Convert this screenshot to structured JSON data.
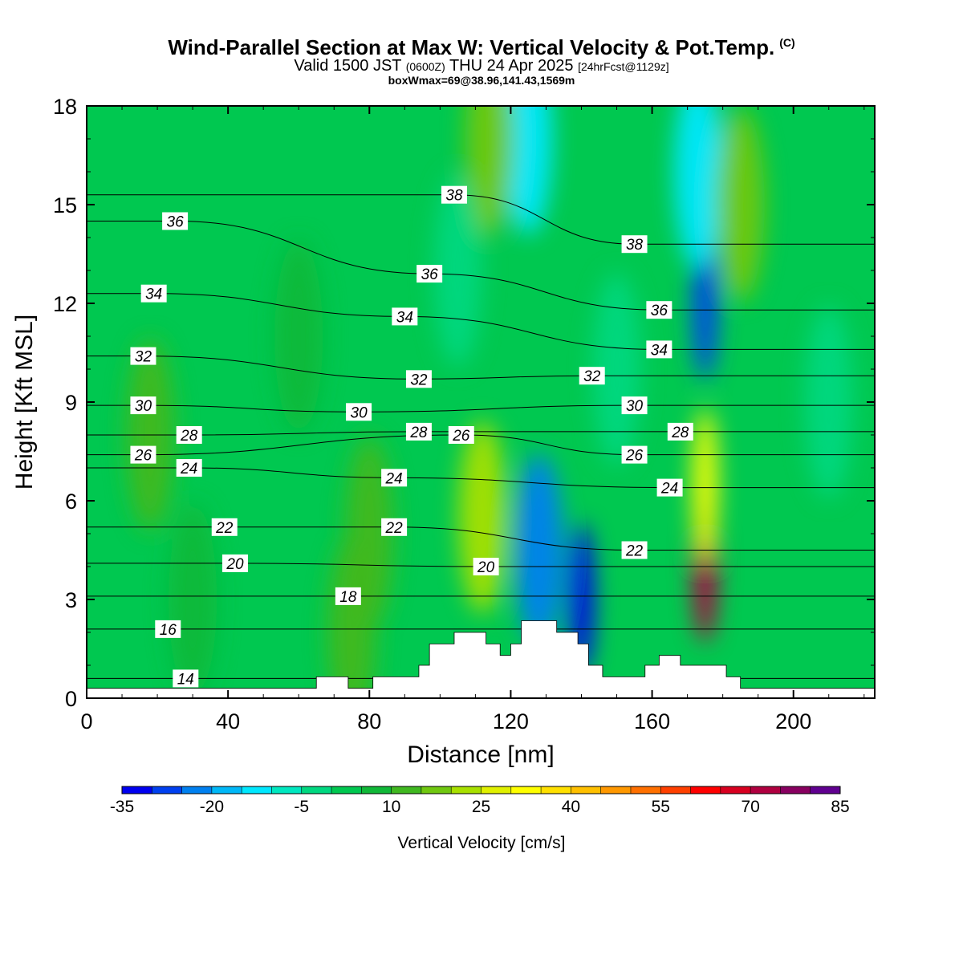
{
  "header": {
    "title": "Wind-Parallel Section at Max W: Vertical Velocity & Pot.Temp.",
    "copyright": "(C)",
    "valid_prefix": "Valid 1500 JST",
    "valid_utc": "(0600Z)",
    "valid_date": "THU 24 Apr 2025",
    "forecast": "[24hrFcst@1129z]",
    "box_info": "boxWmax=69@38.96,141.43,1569m"
  },
  "chart_data": {
    "type": "heatmap",
    "xlabel": "Distance [nm]",
    "ylabel": "Height [Kft MSL]",
    "xlim": [
      0,
      223
    ],
    "ylim": [
      0,
      18
    ],
    "x_ticks": [
      0,
      40,
      80,
      120,
      160,
      200
    ],
    "y_ticks": [
      0,
      3,
      6,
      9,
      12,
      15,
      18
    ],
    "grid": false,
    "colorbar": {
      "label": "Vertical Velocity [cm/s]",
      "position": "bottom",
      "min": -35,
      "max": 85,
      "step": 5,
      "tick_labels": [
        -35,
        -20,
        -5,
        10,
        25,
        40,
        55,
        70,
        85
      ],
      "colors": [
        "#0000f0",
        "#0040f0",
        "#0080f0",
        "#00b8f8",
        "#00e8ff",
        "#00e8c0",
        "#00d880",
        "#00c850",
        "#10b838",
        "#40b820",
        "#70c810",
        "#a8e000",
        "#e0f000",
        "#ffff00",
        "#ffe000",
        "#ffc000",
        "#ff9800",
        "#ff7000",
        "#ff4000",
        "#ff0000",
        "#d80020",
        "#b00040",
        "#880060",
        "#600090"
      ]
    },
    "background_velocity": 0,
    "velocity_features": [
      {
        "x": 175,
        "z": 4,
        "w": 70,
        "note": "max updraft"
      },
      {
        "x": 175,
        "z": 6.5,
        "w": 30
      },
      {
        "x": 112,
        "z": 5.5,
        "w": 22
      },
      {
        "x": 140,
        "z": 3,
        "w": -33
      },
      {
        "x": 128,
        "z": 4.5,
        "w": -22
      },
      {
        "x": 175,
        "z": 12,
        "w": -30
      },
      {
        "x": 173,
        "z": 16,
        "w": -15
      },
      {
        "x": 125,
        "z": 17,
        "w": -12
      },
      {
        "x": 114,
        "z": 17,
        "w": 18
      },
      {
        "x": 185,
        "z": 15,
        "w": 15
      },
      {
        "x": 75,
        "z": 2,
        "w": 12
      },
      {
        "x": 80,
        "z": 5,
        "w": 12
      },
      {
        "x": 60,
        "z": 11,
        "w": 8
      },
      {
        "x": 18,
        "z": 8,
        "w": 10
      },
      {
        "x": 30,
        "z": 3,
        "w": 8
      },
      {
        "x": 105,
        "z": 13,
        "w": -5
      },
      {
        "x": 150,
        "z": 10,
        "w": -5
      },
      {
        "x": 210,
        "z": 9,
        "w": -5
      }
    ],
    "isentropes": {
      "quantity": "Potential Temperature",
      "labels": [
        {
          "value": "14",
          "x": 28,
          "z": 0.6
        },
        {
          "value": "16",
          "x": 23,
          "z": 2.1
        },
        {
          "value": "18",
          "x": 74,
          "z": 3.1
        },
        {
          "value": "20",
          "x": 42,
          "z": 4.1
        },
        {
          "value": "20",
          "x": 113,
          "z": 4.0
        },
        {
          "value": "22",
          "x": 39,
          "z": 5.2
        },
        {
          "value": "22",
          "x": 87,
          "z": 5.2
        },
        {
          "value": "22",
          "x": 155,
          "z": 4.5
        },
        {
          "value": "24",
          "x": 29,
          "z": 7.0
        },
        {
          "value": "24",
          "x": 87,
          "z": 6.7
        },
        {
          "value": "24",
          "x": 165,
          "z": 6.4
        },
        {
          "value": "26",
          "x": 16,
          "z": 7.4
        },
        {
          "value": "26",
          "x": 106,
          "z": 8.0
        },
        {
          "value": "26",
          "x": 155,
          "z": 7.4
        },
        {
          "value": "28",
          "x": 29,
          "z": 8.0
        },
        {
          "value": "28",
          "x": 94,
          "z": 8.1
        },
        {
          "value": "28",
          "x": 168,
          "z": 8.1
        },
        {
          "value": "30",
          "x": 16,
          "z": 8.9
        },
        {
          "value": "30",
          "x": 77,
          "z": 8.7
        },
        {
          "value": "30",
          "x": 155,
          "z": 8.9
        },
        {
          "value": "32",
          "x": 16,
          "z": 10.4
        },
        {
          "value": "32",
          "x": 94,
          "z": 9.7
        },
        {
          "value": "32",
          "x": 143,
          "z": 9.8
        },
        {
          "value": "34",
          "x": 19,
          "z": 12.3
        },
        {
          "value": "34",
          "x": 90,
          "z": 11.6
        },
        {
          "value": "34",
          "x": 162,
          "z": 10.6
        },
        {
          "value": "36",
          "x": 25,
          "z": 14.5
        },
        {
          "value": "36",
          "x": 97,
          "z": 12.9
        },
        {
          "value": "36",
          "x": 162,
          "z": 11.8
        },
        {
          "value": "38",
          "x": 104,
          "z": 15.3
        },
        {
          "value": "38",
          "x": 155,
          "z": 13.8
        }
      ]
    },
    "terrain": [
      [
        0,
        0.3
      ],
      [
        65,
        0.3
      ],
      [
        65,
        0.65
      ],
      [
        74,
        0.65
      ],
      [
        74,
        0.3
      ],
      [
        81,
        0.3
      ],
      [
        81,
        0.65
      ],
      [
        94,
        0.65
      ],
      [
        94,
        1.0
      ],
      [
        97,
        1.0
      ],
      [
        97,
        1.65
      ],
      [
        104,
        1.65
      ],
      [
        104,
        2.0
      ],
      [
        113,
        2.0
      ],
      [
        113,
        1.65
      ],
      [
        117,
        1.65
      ],
      [
        117,
        1.3
      ],
      [
        120,
        1.3
      ],
      [
        120,
        1.65
      ],
      [
        123,
        1.65
      ],
      [
        123,
        2.35
      ],
      [
        133,
        2.35
      ],
      [
        133,
        2.0
      ],
      [
        139,
        2.0
      ],
      [
        139,
        1.65
      ],
      [
        142,
        1.65
      ],
      [
        142,
        1.0
      ],
      [
        146,
        1.0
      ],
      [
        146,
        0.65
      ],
      [
        158,
        0.65
      ],
      [
        158,
        1.0
      ],
      [
        162,
        1.0
      ],
      [
        162,
        1.3
      ],
      [
        168,
        1.3
      ],
      [
        168,
        1.0
      ],
      [
        181,
        1.0
      ],
      [
        181,
        0.65
      ],
      [
        185,
        0.65
      ],
      [
        185,
        0.3
      ],
      [
        223,
        0.3
      ]
    ]
  }
}
